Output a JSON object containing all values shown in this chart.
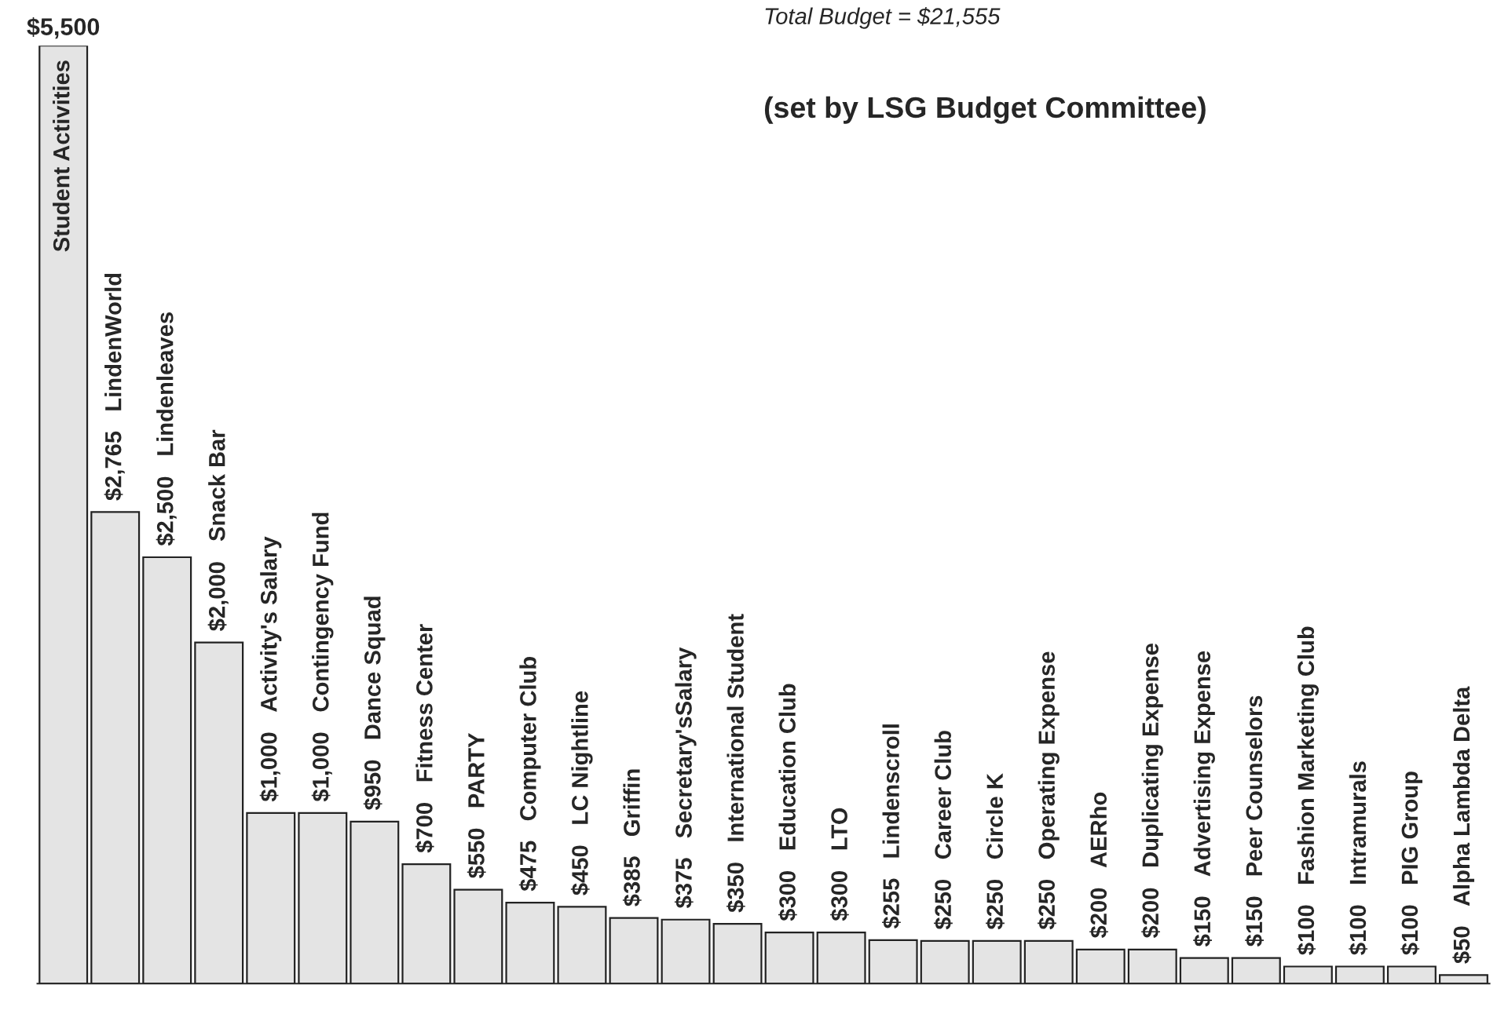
{
  "chart_data": {
    "type": "bar",
    "subtitle": "Total Budget = $21,555",
    "annotations": [
      "(set by LSG Budget Committee)"
    ],
    "categories": [
      "Student Activities",
      "LindenWorld",
      "Lindenleaves",
      "Snack Bar",
      "Activity's Salary",
      "Contingency Fund",
      "Dance Squad",
      "Fitness Center",
      "PARTY",
      "Computer Club",
      "LC Nightline",
      "Griffin",
      "Secretary'sSalary",
      "International Student",
      "Education Club",
      "LTO",
      "Lindenscroll",
      "Career Club",
      "Circle K",
      "Operating Expense",
      "AERho",
      "Duplicating Expense",
      "Advertising Expense",
      "Peer Counselors",
      "Fashion Marketing Club",
      "Intramurals",
      "PIG Group",
      "Alpha Lambda Delta"
    ],
    "values": [
      5500,
      2765,
      2500,
      2000,
      1000,
      1000,
      950,
      700,
      550,
      475,
      450,
      385,
      375,
      350,
      300,
      300,
      255,
      250,
      250,
      250,
      200,
      200,
      150,
      150,
      100,
      100,
      100,
      50
    ],
    "value_labels": [
      "$5,500",
      "$2,765",
      "$2,500",
      "$2,000",
      "$1,000",
      "$1,000",
      "$950",
      "$700",
      "$550",
      "$475",
      "$450",
      "$385",
      "$375",
      "$350",
      "$300",
      "$300",
      "$255",
      "$250",
      "$250",
      "$250",
      "$200",
      "$200",
      "$150",
      "$150",
      "$100",
      "$100",
      "$100",
      "$50"
    ],
    "color": "#e4e4e4",
    "tick_labels": false
  }
}
